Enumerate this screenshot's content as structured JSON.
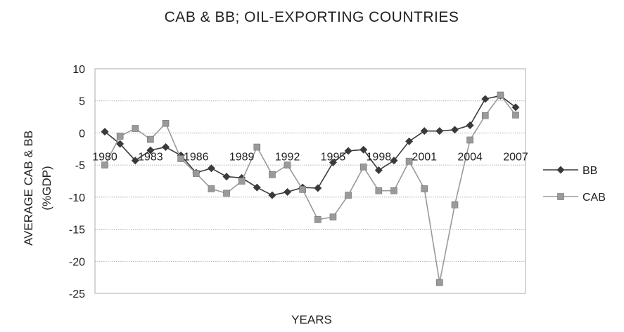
{
  "chart_data": {
    "type": "line",
    "title": "CAB & BB; OIL-EXPORTING COUNTRIES",
    "xlabel": "YEARS",
    "ylabel_line1": "AVERAGE CAB & BB",
    "ylabel_line2": "(%GDP)",
    "ylim": [
      -25,
      10
    ],
    "yticks": [
      "10",
      "5",
      "0",
      "-5",
      "-10",
      "-15",
      "-20",
      "-25"
    ],
    "x": [
      1980,
      1981,
      1982,
      1983,
      1984,
      1985,
      1986,
      1987,
      1988,
      1989,
      1990,
      1991,
      1992,
      1993,
      1994,
      1995,
      1996,
      1997,
      1998,
      1999,
      2000,
      2001,
      2002,
      2003,
      2004,
      2005,
      2006,
      2007
    ],
    "xtick_labels": [
      "1980",
      "1983",
      "1986",
      "1989",
      "1992",
      "1995",
      "1998",
      "2001",
      "2004",
      "2007"
    ],
    "grid": true,
    "legend_position": "right",
    "series": [
      {
        "name": "BB",
        "color": "#3a3a3a",
        "marker": "diamond",
        "values": [
          0.2,
          -1.7,
          -4.3,
          -2.7,
          -2.2,
          -3.5,
          -6.2,
          -5.5,
          -6.8,
          -7.0,
          -8.5,
          -9.7,
          -9.2,
          -8.5,
          -8.6,
          -4.6,
          -2.8,
          -2.6,
          -5.8,
          -4.3,
          -1.3,
          0.3,
          0.3,
          0.5,
          1.2,
          5.3,
          5.8,
          4.0
        ]
      },
      {
        "name": "CAB",
        "color": "#9a9a9a",
        "marker": "square",
        "values": [
          -5.0,
          -0.5,
          0.7,
          -1.0,
          1.5,
          -4.0,
          -6.3,
          -8.7,
          -9.4,
          -7.5,
          -2.2,
          -6.5,
          -5.0,
          -8.8,
          -13.5,
          -13.1,
          -9.7,
          -5.3,
          -9.0,
          -9.0,
          -4.4,
          -8.7,
          -23.3,
          -11.2,
          -1.1,
          2.7,
          5.9,
          2.8
        ]
      }
    ]
  }
}
